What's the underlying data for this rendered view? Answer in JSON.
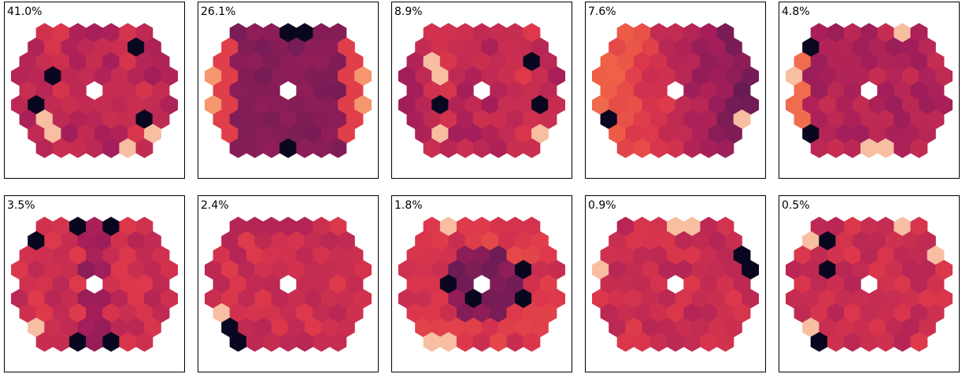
{
  "chart_data": {
    "type": "heatmap",
    "description_colormap": "rocket",
    "panels": [
      {
        "label": "41.0%",
        "pattern": "stripes",
        "seed": 11,
        "dark": [
          [
            -3,
            -1
          ],
          [
            -4,
            1
          ],
          [
            -3,
            2
          ],
          [
            2,
            -3
          ],
          [
            3,
            2
          ]
        ],
        "light": [
          [
            -3,
            2
          ],
          [
            3,
            3
          ],
          [
            2,
            4
          ],
          [
            -3,
            3
          ]
        ]
      },
      {
        "label": "26.1%",
        "pattern": "edges",
        "seed": 23,
        "dark": [
          [
            0,
            -4
          ],
          [
            0,
            4
          ],
          [
            1,
            -4
          ]
        ],
        "light": [
          [
            -6,
            0
          ],
          [
            6,
            0
          ]
        ]
      },
      {
        "label": "8.9%",
        "pattern": "stripes",
        "seed": 37,
        "dark": [
          [
            -3,
            1
          ],
          [
            3,
            -2
          ],
          [
            3,
            1
          ],
          [
            4,
            -3
          ]
        ],
        "light": [
          [
            -3,
            -2
          ],
          [
            -3,
            -1
          ],
          [
            3,
            3
          ],
          [
            -3,
            3
          ]
        ]
      },
      {
        "label": "7.6%",
        "pattern": "gradient",
        "seed": 41,
        "dark": [
          [
            6,
            -1
          ],
          [
            6,
            0
          ],
          [
            5,
            -2
          ],
          [
            -4,
            2
          ]
        ],
        "light": [
          [
            -6,
            -1
          ],
          [
            -6,
            0
          ],
          [
            4,
            2
          ],
          [
            4,
            3
          ]
        ]
      },
      {
        "label": "4.8%",
        "pattern": "leftlight",
        "seed": 53,
        "dark": [
          [
            -4,
            -3
          ],
          [
            4,
            -4
          ],
          [
            4,
            3
          ],
          [
            -4,
            3
          ]
        ],
        "light": [
          [
            -5,
            -1
          ],
          [
            -5,
            0
          ],
          [
            0,
            4
          ],
          [
            1,
            4
          ],
          [
            2,
            -4
          ]
        ]
      },
      {
        "label": "3.5%",
        "pattern": "crossdark",
        "seed": 61,
        "dark": [
          [
            -1,
            -4
          ],
          [
            1,
            -4
          ],
          [
            -1,
            4
          ],
          [
            1,
            4
          ],
          [
            -4,
            -3
          ]
        ],
        "light": [
          [
            -4,
            3
          ],
          [
            4,
            3
          ],
          [
            4,
            -3
          ],
          [
            -4,
            -4
          ]
        ]
      },
      {
        "label": "2.4%",
        "pattern": "flat",
        "seed": 71,
        "dark": [
          [
            -5,
            -3
          ],
          [
            5,
            -2
          ],
          [
            -4,
            3
          ],
          [
            -3,
            4
          ],
          [
            4,
            4
          ]
        ],
        "light": [
          [
            -5,
            -2
          ],
          [
            -4,
            2
          ],
          [
            5,
            -3
          ],
          [
            5,
            2
          ]
        ]
      },
      {
        "label": "1.8%",
        "pattern": "ring",
        "seed": 83,
        "dark": [
          [
            -2,
            0
          ],
          [
            -1,
            1
          ],
          [
            2,
            -1
          ],
          [
            2,
            1
          ]
        ],
        "light": [
          [
            -2,
            -4
          ],
          [
            4,
            -3
          ],
          [
            -2,
            4
          ],
          [
            -3,
            4
          ]
        ]
      },
      {
        "label": "0.9%",
        "pattern": "flat",
        "seed": 97,
        "dark": [
          [
            -5,
            -3
          ],
          [
            4,
            -2
          ],
          [
            4,
            -1
          ],
          [
            -5,
            3
          ]
        ],
        "light": [
          [
            -5,
            -1
          ],
          [
            -5,
            4
          ],
          [
            0,
            -4
          ],
          [
            1,
            -4
          ]
        ]
      },
      {
        "label": "0.5%",
        "pattern": "flat",
        "seed": 101,
        "dark": [
          [
            -3,
            -3
          ],
          [
            -3,
            -1
          ],
          [
            -3,
            4
          ]
        ],
        "light": [
          [
            -4,
            -3
          ],
          [
            4,
            -2
          ],
          [
            -4,
            3
          ],
          [
            2,
            -4
          ]
        ]
      }
    ]
  }
}
